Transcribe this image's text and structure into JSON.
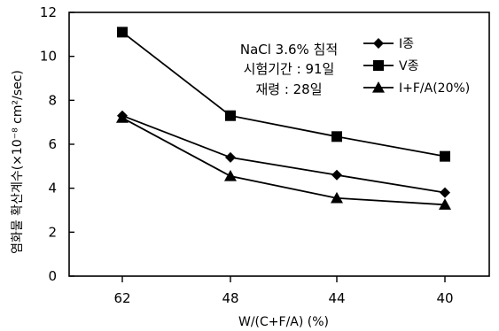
{
  "chart_data": {
    "type": "line",
    "categories": [
      "62",
      "48",
      "44",
      "40"
    ],
    "xlabel": "W/(C+F/A) (%)",
    "ylabel": "염화물 확산계수(×10⁻⁸ cm²/sec)",
    "ylim": [
      0,
      12
    ],
    "yticks": [
      "0",
      "2",
      "4",
      "6",
      "8",
      "10",
      "12"
    ],
    "grid": false,
    "legend_position": "top-right",
    "annotations": [
      "NaCl 3.6% 침적",
      "시험기간 : 91일",
      "재령 : 28일"
    ],
    "series": [
      {
        "name": "I종",
        "marker": "diamond",
        "values": [
          7.3,
          5.4,
          4.6,
          3.8
        ]
      },
      {
        "name": "V종",
        "marker": "square",
        "values": [
          11.1,
          7.3,
          6.35,
          5.45
        ]
      },
      {
        "name": "I+F/A(20%)",
        "marker": "triangle",
        "values": [
          7.2,
          4.55,
          3.55,
          3.25
        ]
      }
    ]
  }
}
